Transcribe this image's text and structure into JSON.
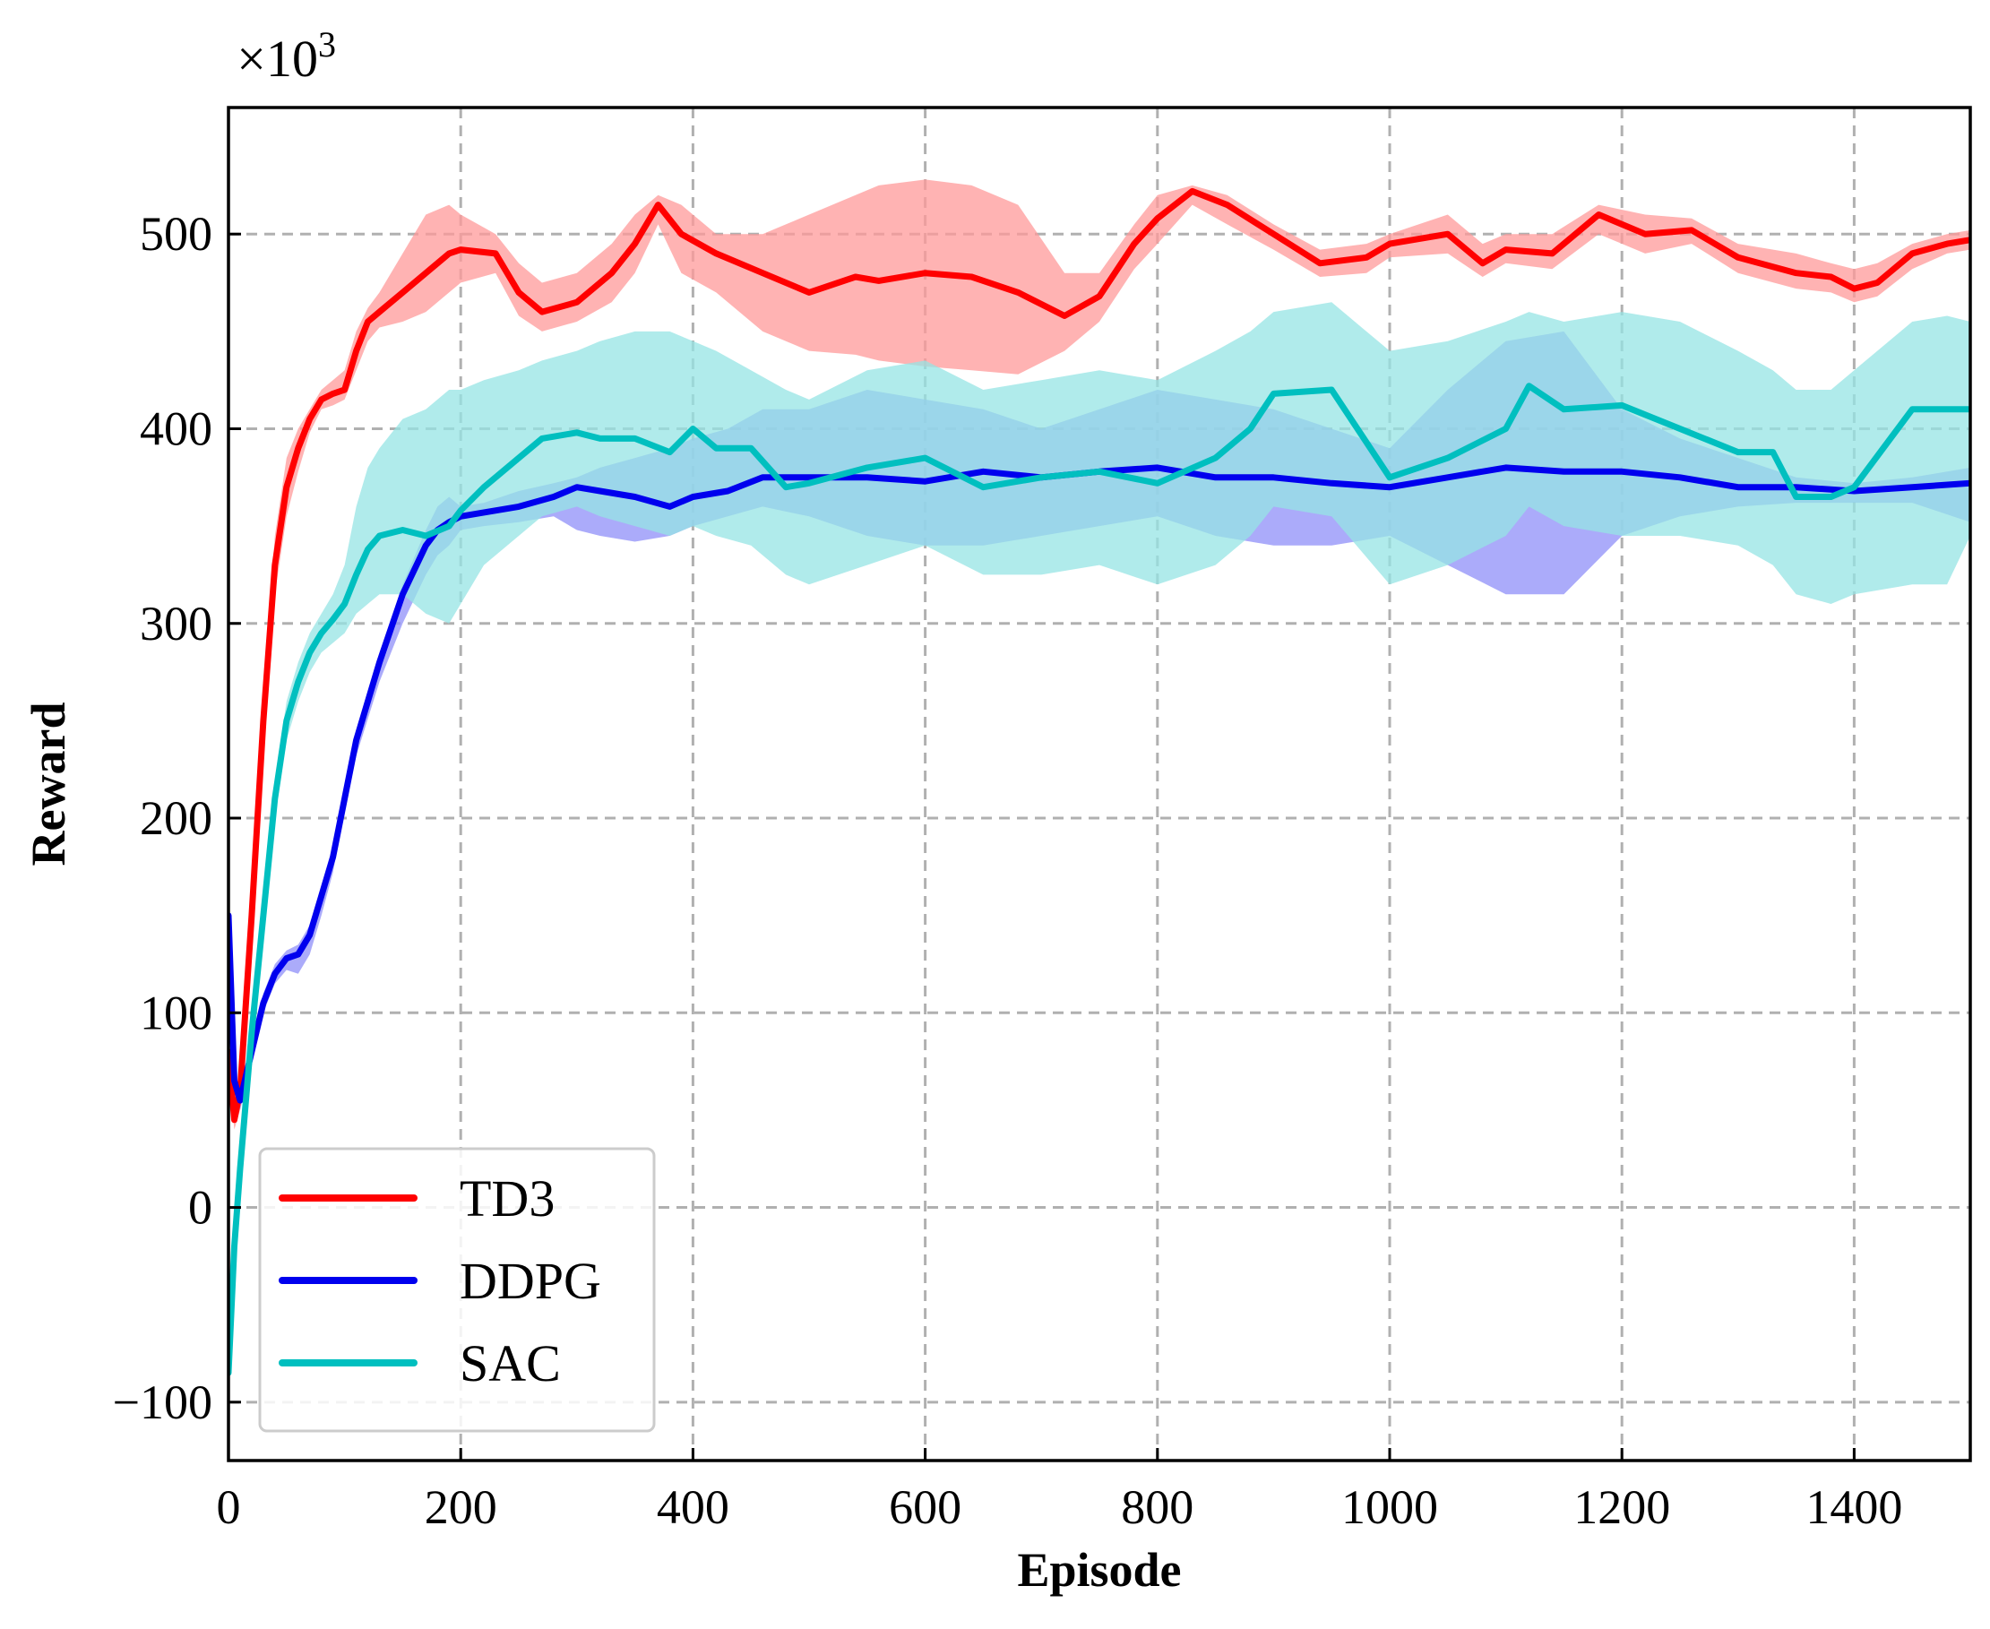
{
  "chart_data": {
    "type": "line",
    "title": "",
    "xlabel": "Episode",
    "ylabel": "Reward",
    "y_multiplier_prefix": "×10",
    "y_multiplier_exponent": "3",
    "xlim": [
      0,
      1500
    ],
    "ylim": [
      -130,
      565
    ],
    "xticks": [
      0,
      200,
      400,
      600,
      800,
      1000,
      1200,
      1400
    ],
    "yticks": [
      -100,
      0,
      100,
      200,
      300,
      400,
      500
    ],
    "xtick_labels": [
      "0",
      "200",
      "400",
      "600",
      "800",
      "1000",
      "1200",
      "1400"
    ],
    "ytick_labels": [
      "−100",
      "0",
      "100",
      "200",
      "300",
      "400",
      "500"
    ],
    "grid": true,
    "legend_position": "lower-left",
    "series": [
      {
        "name": "TD3",
        "color": "#ff0000",
        "band_color": "#ff9a9a",
        "x": [
          0,
          5,
          10,
          20,
          30,
          40,
          50,
          60,
          70,
          80,
          90,
          100,
          110,
          120,
          130,
          150,
          170,
          190,
          200,
          230,
          250,
          270,
          300,
          330,
          350,
          370,
          390,
          420,
          460,
          500,
          540,
          560,
          600,
          640,
          680,
          720,
          750,
          780,
          800,
          830,
          860,
          900,
          940,
          980,
          1000,
          1050,
          1080,
          1100,
          1140,
          1180,
          1220,
          1260,
          1300,
          1350,
          1380,
          1400,
          1420,
          1450,
          1480,
          1500
        ],
        "y": [
          80,
          45,
          60,
          150,
          250,
          330,
          370,
          390,
          405,
          415,
          418,
          420,
          440,
          455,
          460,
          470,
          480,
          490,
          492,
          490,
          470,
          460,
          465,
          480,
          495,
          515,
          500,
          490,
          480,
          470,
          478,
          476,
          480,
          478,
          470,
          458,
          468,
          495,
          508,
          522,
          515,
          500,
          485,
          488,
          495,
          500,
          485,
          492,
          490,
          510,
          500,
          502,
          488,
          480,
          478,
          472,
          475,
          490,
          495,
          497
        ],
        "upper": [
          90,
          55,
          70,
          165,
          270,
          345,
          385,
          400,
          410,
          420,
          425,
          430,
          450,
          462,
          470,
          490,
          510,
          515,
          510,
          500,
          485,
          475,
          480,
          495,
          510,
          520,
          515,
          500,
          500,
          510,
          520,
          525,
          528,
          525,
          515,
          480,
          480,
          505,
          520,
          525,
          520,
          505,
          492,
          495,
          500,
          510,
          495,
          500,
          500,
          515,
          510,
          508,
          495,
          490,
          485,
          482,
          485,
          495,
          500,
          502
        ],
        "lower": [
          70,
          40,
          50,
          135,
          230,
          315,
          355,
          378,
          398,
          410,
          412,
          415,
          430,
          445,
          452,
          455,
          460,
          470,
          475,
          480,
          458,
          450,
          455,
          465,
          480,
          505,
          480,
          470,
          450,
          440,
          438,
          435,
          432,
          430,
          428,
          440,
          455,
          482,
          495,
          515,
          505,
          492,
          478,
          480,
          488,
          490,
          478,
          485,
          482,
          500,
          490,
          495,
          480,
          472,
          470,
          465,
          468,
          482,
          490,
          492
        ]
      },
      {
        "name": "DDPG",
        "color": "#0000ee",
        "band_color": "#8f8ff8",
        "x": [
          0,
          5,
          10,
          20,
          30,
          40,
          50,
          60,
          70,
          80,
          90,
          100,
          110,
          130,
          150,
          170,
          180,
          190,
          200,
          220,
          250,
          280,
          300,
          320,
          350,
          380,
          400,
          430,
          460,
          500,
          550,
          600,
          650,
          700,
          750,
          800,
          850,
          900,
          950,
          1000,
          1050,
          1100,
          1150,
          1200,
          1250,
          1300,
          1350,
          1400,
          1450,
          1500
        ],
        "y": [
          150,
          65,
          55,
          80,
          105,
          120,
          128,
          130,
          140,
          160,
          180,
          210,
          240,
          280,
          315,
          340,
          348,
          352,
          355,
          357,
          360,
          365,
          370,
          368,
          365,
          360,
          365,
          368,
          375,
          375,
          375,
          373,
          378,
          375,
          378,
          380,
          375,
          375,
          372,
          370,
          375,
          380,
          378,
          378,
          375,
          370,
          370,
          368,
          370,
          372
        ],
        "upper": [
          155,
          70,
          60,
          85,
          110,
          125,
          132,
          135,
          145,
          165,
          185,
          215,
          245,
          285,
          320,
          348,
          360,
          365,
          360,
          362,
          368,
          372,
          375,
          380,
          385,
          390,
          395,
          400,
          410,
          410,
          420,
          415,
          410,
          400,
          410,
          420,
          415,
          410,
          400,
          390,
          420,
          445,
          450,
          410,
          395,
          385,
          375,
          372,
          375,
          380
        ],
        "lower": [
          145,
          60,
          50,
          75,
          100,
          115,
          122,
          120,
          130,
          150,
          172,
          205,
          232,
          270,
          300,
          325,
          335,
          340,
          348,
          350,
          352,
          355,
          348,
          345,
          342,
          345,
          350,
          355,
          360,
          355,
          345,
          340,
          340,
          345,
          350,
          355,
          345,
          340,
          340,
          345,
          330,
          315,
          315,
          345,
          355,
          360,
          362,
          362,
          362,
          352
        ]
      },
      {
        "name": "SAC",
        "color": "#00bfbf",
        "band_color": "#96e4e4",
        "x": [
          0,
          5,
          10,
          20,
          30,
          40,
          50,
          60,
          70,
          80,
          90,
          100,
          110,
          120,
          130,
          150,
          170,
          190,
          200,
          220,
          250,
          270,
          300,
          320,
          350,
          380,
          400,
          420,
          450,
          480,
          500,
          550,
          600,
          650,
          700,
          750,
          800,
          850,
          880,
          900,
          950,
          1000,
          1050,
          1100,
          1120,
          1150,
          1200,
          1250,
          1300,
          1330,
          1350,
          1380,
          1400,
          1450,
          1480,
          1500
        ],
        "y": [
          -85,
          -20,
          20,
          90,
          150,
          210,
          250,
          270,
          285,
          295,
          302,
          310,
          325,
          338,
          345,
          348,
          345,
          350,
          358,
          370,
          385,
          395,
          398,
          395,
          395,
          388,
          400,
          390,
          390,
          370,
          372,
          380,
          385,
          370,
          375,
          378,
          372,
          385,
          400,
          418,
          420,
          375,
          385,
          400,
          422,
          410,
          412,
          400,
          388,
          388,
          365,
          365,
          370,
          410,
          410,
          410
        ],
        "upper": [
          -80,
          -15,
          25,
          95,
          160,
          220,
          260,
          280,
          295,
          305,
          315,
          330,
          360,
          380,
          390,
          405,
          410,
          420,
          420,
          425,
          430,
          435,
          440,
          445,
          450,
          450,
          445,
          440,
          430,
          420,
          415,
          430,
          435,
          420,
          425,
          430,
          425,
          440,
          450,
          460,
          465,
          440,
          445,
          455,
          460,
          455,
          460,
          455,
          440,
          430,
          420,
          420,
          430,
          455,
          458,
          455
        ],
        "lower": [
          -90,
          -25,
          15,
          85,
          140,
          200,
          240,
          260,
          275,
          285,
          290,
          295,
          305,
          310,
          315,
          315,
          305,
          300,
          310,
          330,
          345,
          355,
          360,
          355,
          350,
          345,
          350,
          345,
          340,
          325,
          320,
          330,
          340,
          325,
          325,
          330,
          320,
          330,
          345,
          360,
          355,
          320,
          330,
          345,
          360,
          350,
          345,
          345,
          340,
          330,
          315,
          310,
          315,
          320,
          320,
          345
        ]
      }
    ]
  }
}
